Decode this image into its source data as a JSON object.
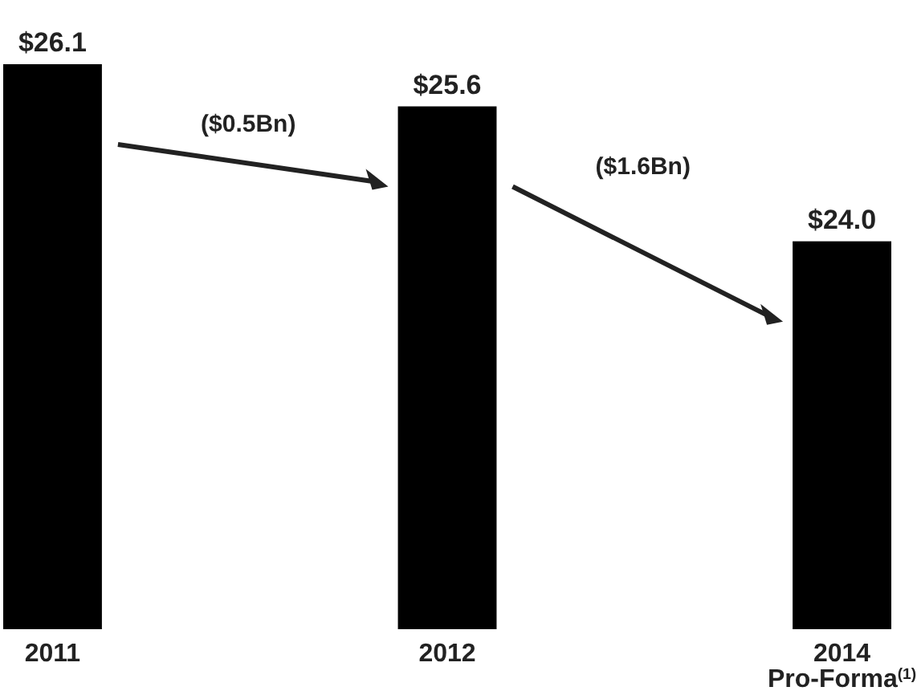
{
  "chart_data": {
    "type": "bar",
    "categories": [
      "2011",
      "2012",
      "2014\nPro-Forma$^{(1)}$"
    ],
    "values": [
      26.1,
      25.6,
      24.0
    ],
    "color": "#000000",
    "value_labels": [
      "$26.1",
      "$25.6",
      "$24.0"
    ],
    "ylim": [
      19.4,
      26.1
    ],
    "tick_labels": "x",
    "annotations": [
      "($0.5Bn)",
      "($1.6Bn)"
    ]
  }
}
